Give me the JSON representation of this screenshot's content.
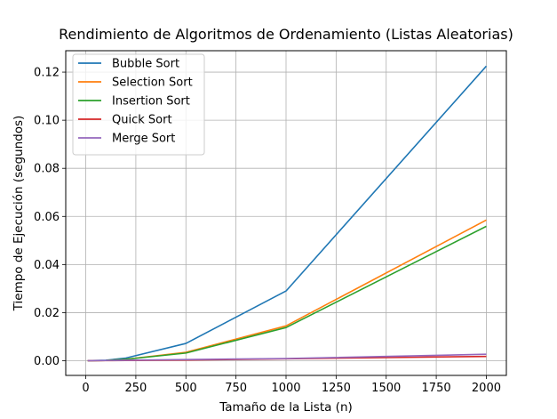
{
  "chart_data": {
    "type": "line",
    "title": "Rendimiento de Algoritmos de Ordenamiento (Listas Aleatorias)",
    "xlabel": "Tamaño de la Lista (n)",
    "ylabel": "Tiempo de Ejecución (segundos)",
    "xlim": [
      -100,
      2100
    ],
    "ylim": [
      -0.0061,
      0.1289
    ],
    "xticks": [
      0,
      250,
      500,
      750,
      1000,
      1250,
      1500,
      1750,
      2000
    ],
    "xtick_labels": [
      "0",
      "250",
      "500",
      "750",
      "1000",
      "1250",
      "1500",
      "1750",
      "2000"
    ],
    "yticks": [
      0.0,
      0.02,
      0.04,
      0.06,
      0.08,
      0.1,
      0.12
    ],
    "ytick_labels": [
      "0.00",
      "0.02",
      "0.04",
      "0.06",
      "0.08",
      "0.10",
      "0.12"
    ],
    "grid": true,
    "legend_position": "upper-left",
    "x": [
      10,
      100,
      200,
      500,
      1000,
      2000
    ],
    "series": [
      {
        "name": "Bubble Sort",
        "color": "#1f77b4",
        "values": [
          1e-05,
          0.0002,
          0.0011,
          0.0072,
          0.029,
          0.1225
        ]
      },
      {
        "name": "Selection Sort",
        "color": "#ff7f0e",
        "values": [
          1e-05,
          0.0001,
          0.0006,
          0.0035,
          0.0145,
          0.0585
        ]
      },
      {
        "name": "Insertion Sort",
        "color": "#2ca02c",
        "values": [
          1e-05,
          0.0001,
          0.0006,
          0.0032,
          0.0138,
          0.0559
        ]
      },
      {
        "name": "Quick Sort",
        "color": "#d62728",
        "values": [
          1e-05,
          5e-05,
          0.0001,
          0.0003,
          0.0008,
          0.0018
        ]
      },
      {
        "name": "Merge Sort",
        "color": "#9467bd",
        "values": [
          2e-05,
          0.0001,
          0.0002,
          0.0005,
          0.0009,
          0.0027
        ]
      }
    ]
  }
}
